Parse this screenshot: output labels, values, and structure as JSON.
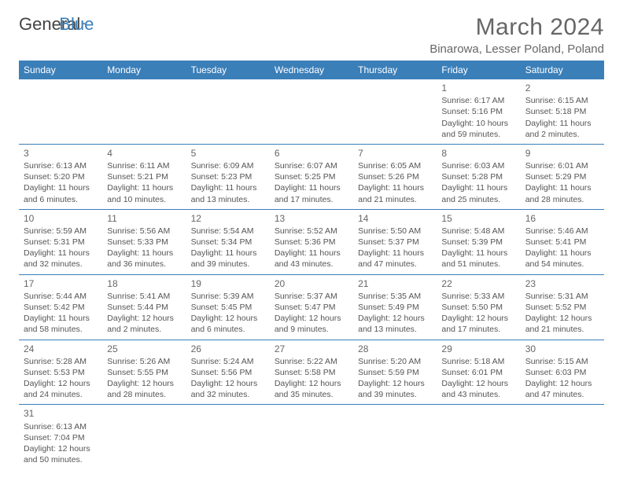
{
  "logo": {
    "text_a": "General",
    "text_b": "Blue"
  },
  "title": "March 2024",
  "location": "Binarowa, Lesser Poland, Poland",
  "colors": {
    "header_bg": "#3b7fb9",
    "header_text": "#ffffff",
    "body_text": "#555555",
    "title_text": "#666666",
    "border": "#3b7fb9",
    "background": "#ffffff"
  },
  "columns": [
    "Sunday",
    "Monday",
    "Tuesday",
    "Wednesday",
    "Thursday",
    "Friday",
    "Saturday"
  ],
  "weeks": [
    [
      null,
      null,
      null,
      null,
      null,
      {
        "n": "1",
        "sunrise": "Sunrise: 6:17 AM",
        "sunset": "Sunset: 5:16 PM",
        "day1": "Daylight: 10 hours",
        "day2": "and 59 minutes."
      },
      {
        "n": "2",
        "sunrise": "Sunrise: 6:15 AM",
        "sunset": "Sunset: 5:18 PM",
        "day1": "Daylight: 11 hours",
        "day2": "and 2 minutes."
      }
    ],
    [
      {
        "n": "3",
        "sunrise": "Sunrise: 6:13 AM",
        "sunset": "Sunset: 5:20 PM",
        "day1": "Daylight: 11 hours",
        "day2": "and 6 minutes."
      },
      {
        "n": "4",
        "sunrise": "Sunrise: 6:11 AM",
        "sunset": "Sunset: 5:21 PM",
        "day1": "Daylight: 11 hours",
        "day2": "and 10 minutes."
      },
      {
        "n": "5",
        "sunrise": "Sunrise: 6:09 AM",
        "sunset": "Sunset: 5:23 PM",
        "day1": "Daylight: 11 hours",
        "day2": "and 13 minutes."
      },
      {
        "n": "6",
        "sunrise": "Sunrise: 6:07 AM",
        "sunset": "Sunset: 5:25 PM",
        "day1": "Daylight: 11 hours",
        "day2": "and 17 minutes."
      },
      {
        "n": "7",
        "sunrise": "Sunrise: 6:05 AM",
        "sunset": "Sunset: 5:26 PM",
        "day1": "Daylight: 11 hours",
        "day2": "and 21 minutes."
      },
      {
        "n": "8",
        "sunrise": "Sunrise: 6:03 AM",
        "sunset": "Sunset: 5:28 PM",
        "day1": "Daylight: 11 hours",
        "day2": "and 25 minutes."
      },
      {
        "n": "9",
        "sunrise": "Sunrise: 6:01 AM",
        "sunset": "Sunset: 5:29 PM",
        "day1": "Daylight: 11 hours",
        "day2": "and 28 minutes."
      }
    ],
    [
      {
        "n": "10",
        "sunrise": "Sunrise: 5:59 AM",
        "sunset": "Sunset: 5:31 PM",
        "day1": "Daylight: 11 hours",
        "day2": "and 32 minutes."
      },
      {
        "n": "11",
        "sunrise": "Sunrise: 5:56 AM",
        "sunset": "Sunset: 5:33 PM",
        "day1": "Daylight: 11 hours",
        "day2": "and 36 minutes."
      },
      {
        "n": "12",
        "sunrise": "Sunrise: 5:54 AM",
        "sunset": "Sunset: 5:34 PM",
        "day1": "Daylight: 11 hours",
        "day2": "and 39 minutes."
      },
      {
        "n": "13",
        "sunrise": "Sunrise: 5:52 AM",
        "sunset": "Sunset: 5:36 PM",
        "day1": "Daylight: 11 hours",
        "day2": "and 43 minutes."
      },
      {
        "n": "14",
        "sunrise": "Sunrise: 5:50 AM",
        "sunset": "Sunset: 5:37 PM",
        "day1": "Daylight: 11 hours",
        "day2": "and 47 minutes."
      },
      {
        "n": "15",
        "sunrise": "Sunrise: 5:48 AM",
        "sunset": "Sunset: 5:39 PM",
        "day1": "Daylight: 11 hours",
        "day2": "and 51 minutes."
      },
      {
        "n": "16",
        "sunrise": "Sunrise: 5:46 AM",
        "sunset": "Sunset: 5:41 PM",
        "day1": "Daylight: 11 hours",
        "day2": "and 54 minutes."
      }
    ],
    [
      {
        "n": "17",
        "sunrise": "Sunrise: 5:44 AM",
        "sunset": "Sunset: 5:42 PM",
        "day1": "Daylight: 11 hours",
        "day2": "and 58 minutes."
      },
      {
        "n": "18",
        "sunrise": "Sunrise: 5:41 AM",
        "sunset": "Sunset: 5:44 PM",
        "day1": "Daylight: 12 hours",
        "day2": "and 2 minutes."
      },
      {
        "n": "19",
        "sunrise": "Sunrise: 5:39 AM",
        "sunset": "Sunset: 5:45 PM",
        "day1": "Daylight: 12 hours",
        "day2": "and 6 minutes."
      },
      {
        "n": "20",
        "sunrise": "Sunrise: 5:37 AM",
        "sunset": "Sunset: 5:47 PM",
        "day1": "Daylight: 12 hours",
        "day2": "and 9 minutes."
      },
      {
        "n": "21",
        "sunrise": "Sunrise: 5:35 AM",
        "sunset": "Sunset: 5:49 PM",
        "day1": "Daylight: 12 hours",
        "day2": "and 13 minutes."
      },
      {
        "n": "22",
        "sunrise": "Sunrise: 5:33 AM",
        "sunset": "Sunset: 5:50 PM",
        "day1": "Daylight: 12 hours",
        "day2": "and 17 minutes."
      },
      {
        "n": "23",
        "sunrise": "Sunrise: 5:31 AM",
        "sunset": "Sunset: 5:52 PM",
        "day1": "Daylight: 12 hours",
        "day2": "and 21 minutes."
      }
    ],
    [
      {
        "n": "24",
        "sunrise": "Sunrise: 5:28 AM",
        "sunset": "Sunset: 5:53 PM",
        "day1": "Daylight: 12 hours",
        "day2": "and 24 minutes."
      },
      {
        "n": "25",
        "sunrise": "Sunrise: 5:26 AM",
        "sunset": "Sunset: 5:55 PM",
        "day1": "Daylight: 12 hours",
        "day2": "and 28 minutes."
      },
      {
        "n": "26",
        "sunrise": "Sunrise: 5:24 AM",
        "sunset": "Sunset: 5:56 PM",
        "day1": "Daylight: 12 hours",
        "day2": "and 32 minutes."
      },
      {
        "n": "27",
        "sunrise": "Sunrise: 5:22 AM",
        "sunset": "Sunset: 5:58 PM",
        "day1": "Daylight: 12 hours",
        "day2": "and 35 minutes."
      },
      {
        "n": "28",
        "sunrise": "Sunrise: 5:20 AM",
        "sunset": "Sunset: 5:59 PM",
        "day1": "Daylight: 12 hours",
        "day2": "and 39 minutes."
      },
      {
        "n": "29",
        "sunrise": "Sunrise: 5:18 AM",
        "sunset": "Sunset: 6:01 PM",
        "day1": "Daylight: 12 hours",
        "day2": "and 43 minutes."
      },
      {
        "n": "30",
        "sunrise": "Sunrise: 5:15 AM",
        "sunset": "Sunset: 6:03 PM",
        "day1": "Daylight: 12 hours",
        "day2": "and 47 minutes."
      }
    ],
    [
      {
        "n": "31",
        "sunrise": "Sunrise: 6:13 AM",
        "sunset": "Sunset: 7:04 PM",
        "day1": "Daylight: 12 hours",
        "day2": "and 50 minutes."
      },
      null,
      null,
      null,
      null,
      null,
      null
    ]
  ]
}
